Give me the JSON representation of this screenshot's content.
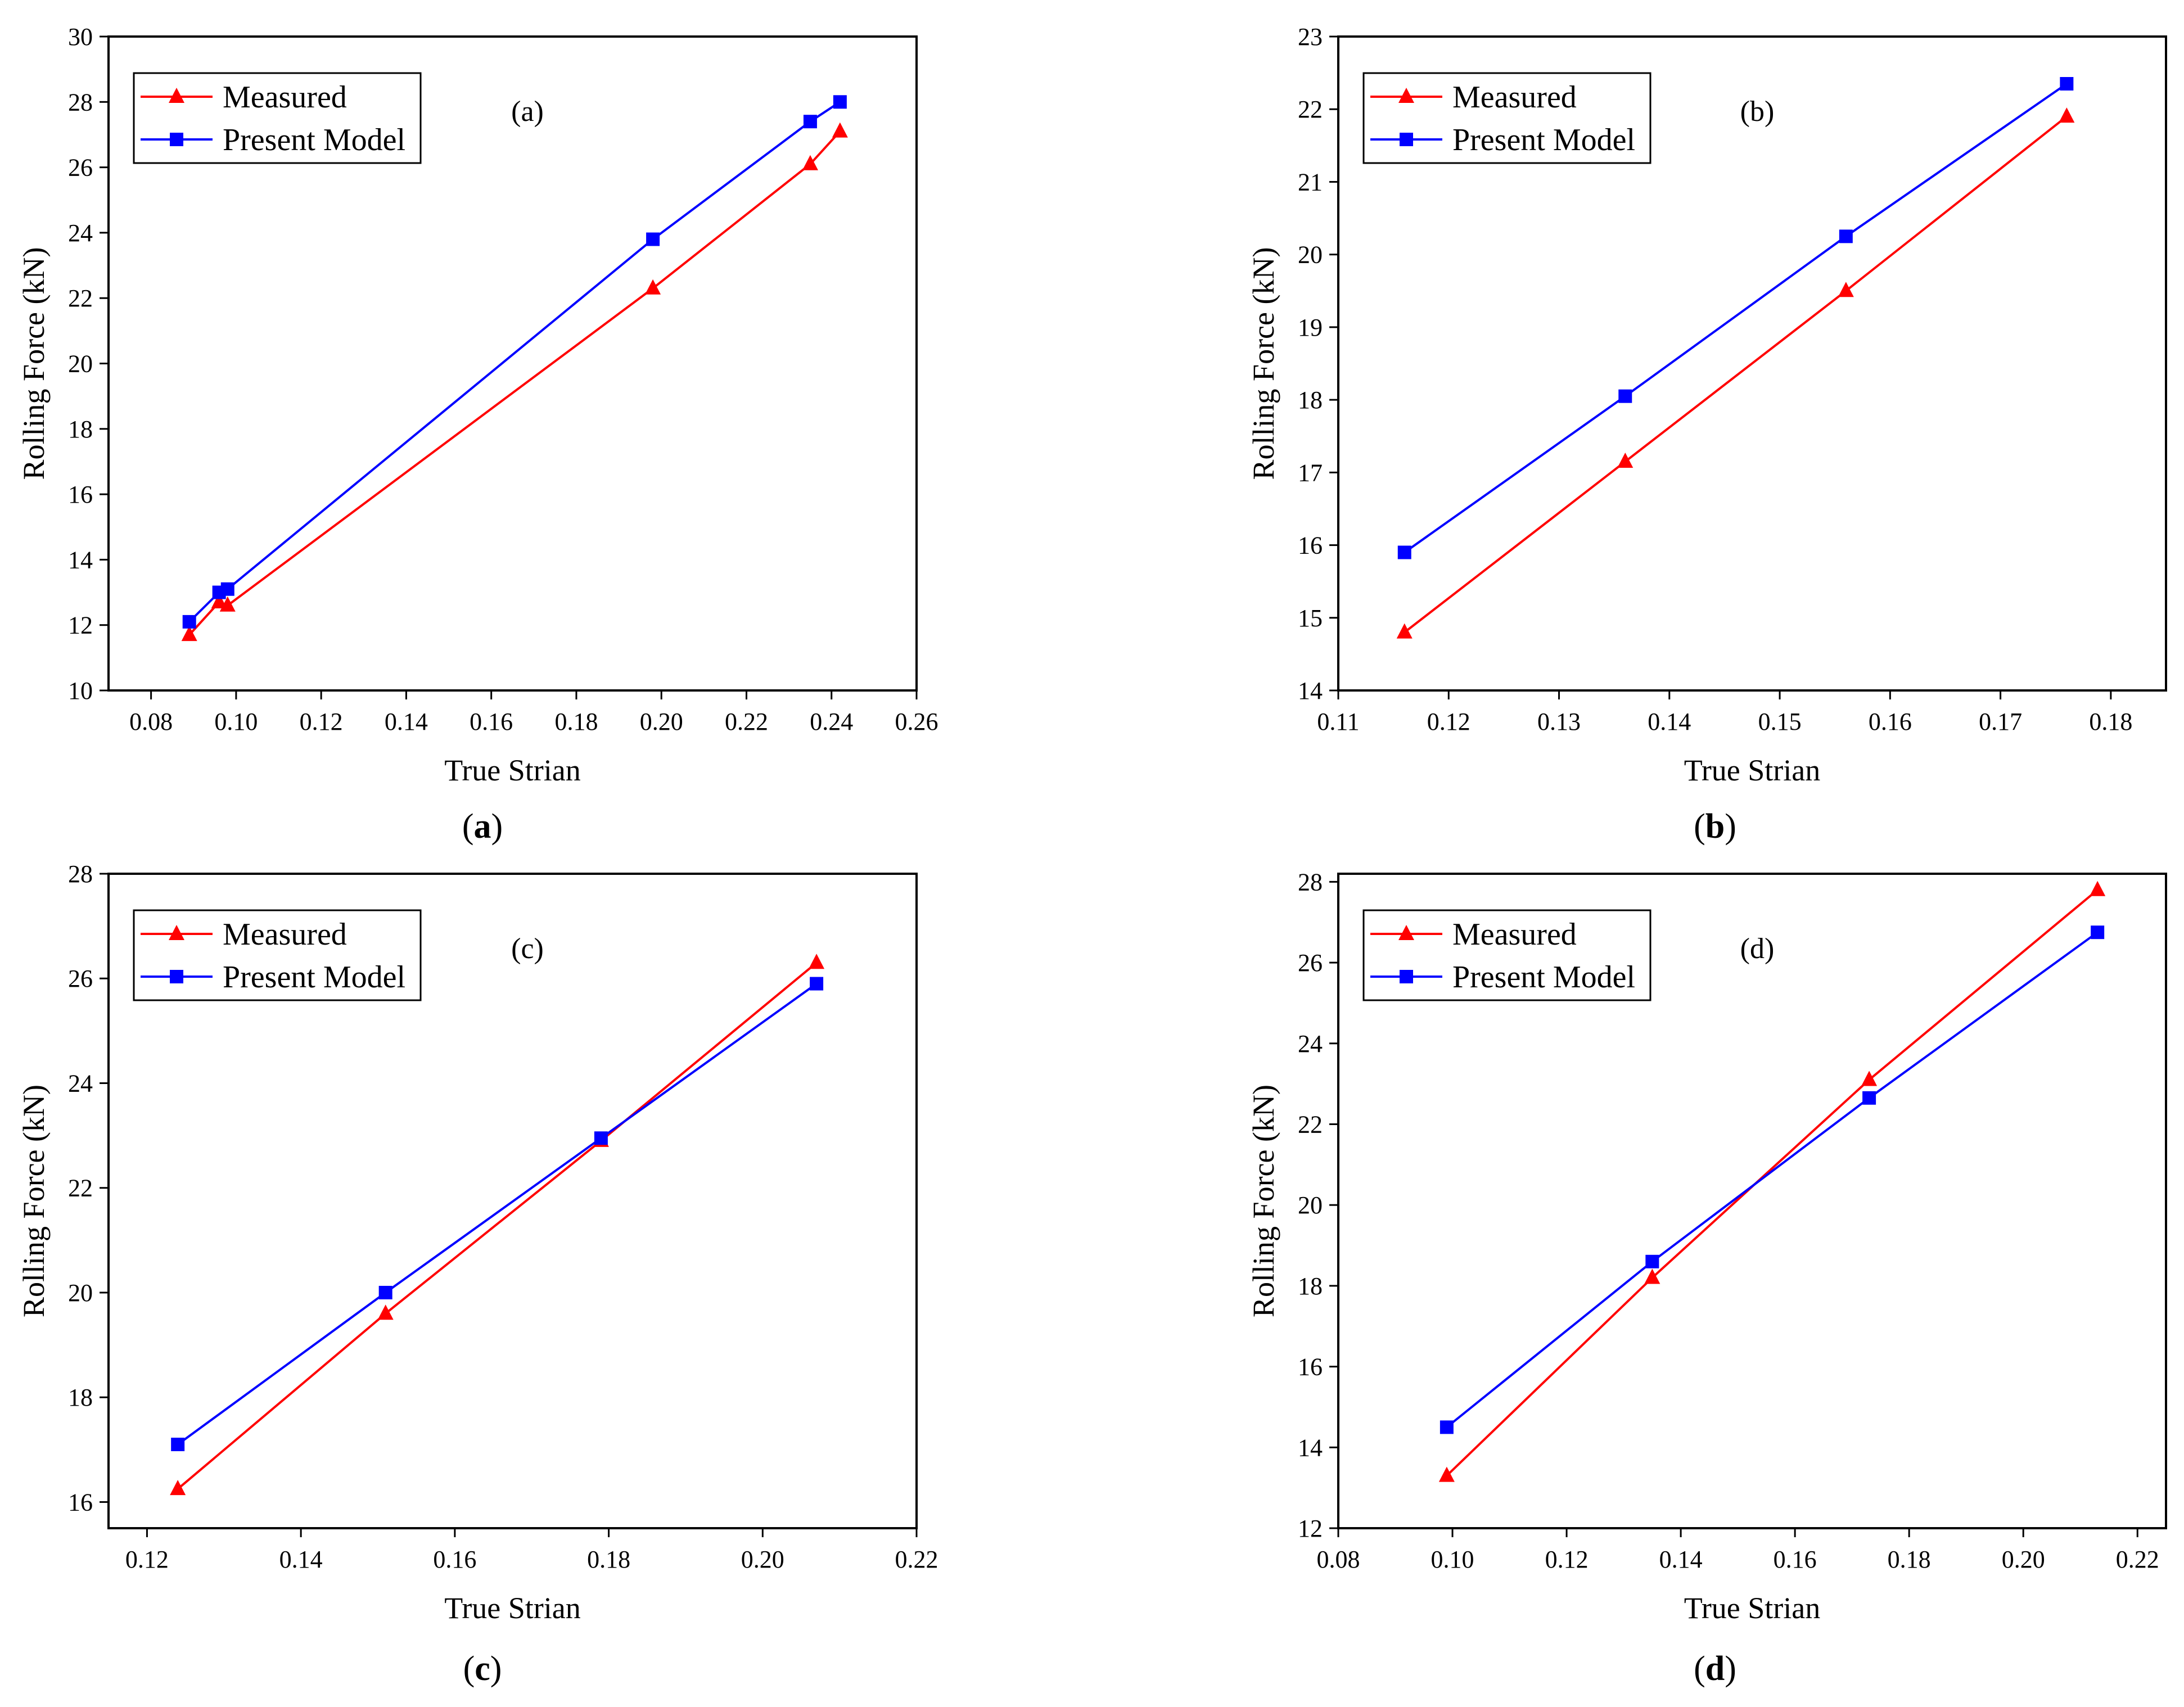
{
  "chart_data": [
    {
      "type": "line",
      "panel_label": "(a)",
      "caption_letter": "a",
      "xlabel": "True Strian",
      "ylabel": "Rolling Force (kN)",
      "xlim": [
        0.07,
        0.26
      ],
      "ylim": [
        10,
        30
      ],
      "x_ticks": [
        "0.08",
        "0.10",
        "0.12",
        "0.14",
        "0.16",
        "0.18",
        "0.20",
        "0.22",
        "0.24",
        "0.26"
      ],
      "y_ticks": [
        "10",
        "12",
        "14",
        "16",
        "18",
        "20",
        "22",
        "24",
        "26",
        "28",
        "30"
      ],
      "legend_position": "top-left",
      "series": [
        {
          "name": "Measured",
          "color": "#ff0000",
          "marker": "triangle",
          "x": [
            0.089,
            0.096,
            0.098,
            0.198,
            0.235,
            0.242
          ],
          "y": [
            11.7,
            12.7,
            12.6,
            22.3,
            26.1,
            27.1
          ]
        },
        {
          "name": "Present Model",
          "color": "#0000ff",
          "marker": "square",
          "x": [
            0.089,
            0.096,
            0.098,
            0.198,
            0.235,
            0.242
          ],
          "y": [
            12.1,
            13.0,
            13.1,
            23.8,
            27.4,
            28.0
          ]
        }
      ]
    },
    {
      "type": "line",
      "panel_label": "(b)",
      "caption_letter": "b",
      "xlabel": "True Strian",
      "ylabel": "Rolling Force (kN)",
      "xlim": [
        0.11,
        0.185
      ],
      "ylim": [
        14,
        23
      ],
      "x_ticks": [
        "0.11",
        "0.12",
        "0.13",
        "0.14",
        "0.15",
        "0.16",
        "0.17",
        "0.18"
      ],
      "y_ticks": [
        "14",
        "15",
        "16",
        "17",
        "18",
        "19",
        "20",
        "21",
        "22",
        "23"
      ],
      "legend_position": "top-left",
      "series": [
        {
          "name": "Measured",
          "color": "#ff0000",
          "marker": "triangle",
          "x": [
            0.116,
            0.136,
            0.156,
            0.176
          ],
          "y": [
            14.8,
            17.15,
            19.5,
            21.9
          ]
        },
        {
          "name": "Present Model",
          "color": "#0000ff",
          "marker": "square",
          "x": [
            0.116,
            0.136,
            0.156,
            0.176
          ],
          "y": [
            15.9,
            18.05,
            20.25,
            22.35
          ]
        }
      ]
    },
    {
      "type": "line",
      "panel_label": "(c)",
      "caption_letter": "c",
      "xlabel": "True Strian",
      "ylabel": "Rolling Force (kN)",
      "xlim": [
        0.115,
        0.22
      ],
      "ylim": [
        15.5,
        28
      ],
      "x_ticks": [
        "0.12",
        "0.14",
        "0.16",
        "0.18",
        "0.20",
        "0.22"
      ],
      "y_ticks": [
        "16",
        "18",
        "20",
        "22",
        "24",
        "26",
        "28"
      ],
      "legend_position": "top-left",
      "series": [
        {
          "name": "Measured",
          "color": "#ff0000",
          "marker": "triangle",
          "x": [
            0.124,
            0.151,
            0.179,
            0.207
          ],
          "y": [
            16.25,
            19.6,
            22.9,
            26.3
          ]
        },
        {
          "name": "Present Model",
          "color": "#0000ff",
          "marker": "square",
          "x": [
            0.124,
            0.151,
            0.179,
            0.207
          ],
          "y": [
            17.1,
            20.0,
            22.95,
            25.9
          ]
        }
      ]
    },
    {
      "type": "line",
      "panel_label": "(d)",
      "caption_letter": "d",
      "xlabel": "True Strian",
      "ylabel": "Rolling Force (kN)",
      "xlim": [
        0.08,
        0.225
      ],
      "ylim": [
        12,
        28.2
      ],
      "x_ticks": [
        "0.08",
        "0.10",
        "0.12",
        "0.14",
        "0.16",
        "0.18",
        "0.20",
        "0.22"
      ],
      "y_ticks": [
        "12",
        "14",
        "16",
        "18",
        "20",
        "22",
        "24",
        "26",
        "28"
      ],
      "legend_position": "top-left",
      "series": [
        {
          "name": "Measured",
          "color": "#ff0000",
          "marker": "triangle",
          "x": [
            0.099,
            0.135,
            0.173,
            0.213
          ],
          "y": [
            13.3,
            18.2,
            23.1,
            27.8
          ]
        },
        {
          "name": "Present Model",
          "color": "#0000ff",
          "marker": "square",
          "x": [
            0.099,
            0.135,
            0.173,
            0.213
          ],
          "y": [
            14.5,
            18.6,
            22.65,
            26.75
          ]
        }
      ]
    }
  ]
}
